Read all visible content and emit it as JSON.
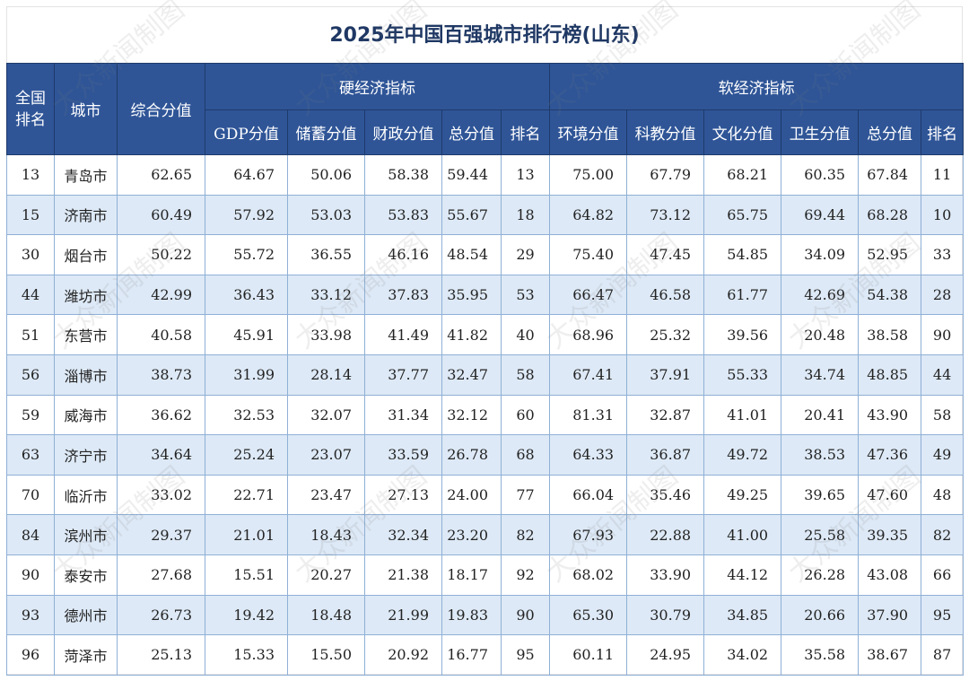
{
  "title": "2025年中国百强城市排行榜(山东)",
  "watermark": "大众新闻制图",
  "colors": {
    "header_bg": "#2f5597",
    "stripe": "#dde9f6",
    "title": "#1f3864"
  },
  "headers": {
    "national_rank": "全国排名",
    "city": "城市",
    "composite": "综合分值",
    "hard_group": "硬经济指标",
    "soft_group": "软经济指标",
    "hard": [
      "GDP分值",
      "储蓄分值",
      "财政分值",
      "总分值",
      "排名"
    ],
    "soft": [
      "环境分值",
      "科教分值",
      "文化分值",
      "卫生分值",
      "总分值",
      "排名"
    ]
  },
  "rows": [
    {
      "rank": "13",
      "city": "青岛市",
      "composite": "62.65",
      "hard": [
        "64.67",
        "50.06",
        "58.38",
        "59.44",
        "13"
      ],
      "soft": [
        "75.00",
        "67.79",
        "68.21",
        "60.35",
        "67.84",
        "11"
      ]
    },
    {
      "rank": "15",
      "city": "济南市",
      "composite": "60.49",
      "hard": [
        "57.92",
        "53.03",
        "53.83",
        "55.67",
        "18"
      ],
      "soft": [
        "64.82",
        "73.12",
        "65.75",
        "69.44",
        "68.28",
        "10"
      ]
    },
    {
      "rank": "30",
      "city": "烟台市",
      "composite": "50.22",
      "hard": [
        "55.72",
        "36.55",
        "46.16",
        "48.54",
        "29"
      ],
      "soft": [
        "75.40",
        "47.45",
        "54.85",
        "34.09",
        "52.95",
        "33"
      ]
    },
    {
      "rank": "44",
      "city": "潍坊市",
      "composite": "42.99",
      "hard": [
        "36.43",
        "33.12",
        "37.83",
        "35.95",
        "53"
      ],
      "soft": [
        "66.47",
        "46.58",
        "61.77",
        "42.69",
        "54.38",
        "28"
      ]
    },
    {
      "rank": "51",
      "city": "东营市",
      "composite": "40.58",
      "hard": [
        "45.91",
        "33.98",
        "41.49",
        "41.82",
        "40"
      ],
      "soft": [
        "68.96",
        "25.32",
        "39.56",
        "20.48",
        "38.58",
        "90"
      ]
    },
    {
      "rank": "56",
      "city": "淄博市",
      "composite": "38.73",
      "hard": [
        "31.99",
        "28.14",
        "37.77",
        "32.47",
        "58"
      ],
      "soft": [
        "67.41",
        "37.91",
        "55.33",
        "34.74",
        "48.85",
        "44"
      ]
    },
    {
      "rank": "59",
      "city": "威海市",
      "composite": "36.62",
      "hard": [
        "32.53",
        "32.07",
        "31.34",
        "32.12",
        "60"
      ],
      "soft": [
        "81.31",
        "32.87",
        "41.01",
        "20.41",
        "43.90",
        "58"
      ]
    },
    {
      "rank": "63",
      "city": "济宁市",
      "composite": "34.64",
      "hard": [
        "25.24",
        "23.07",
        "33.59",
        "26.78",
        "68"
      ],
      "soft": [
        "64.33",
        "36.87",
        "49.72",
        "38.53",
        "47.36",
        "49"
      ]
    },
    {
      "rank": "70",
      "city": "临沂市",
      "composite": "33.02",
      "hard": [
        "22.71",
        "23.47",
        "27.13",
        "24.00",
        "77"
      ],
      "soft": [
        "66.04",
        "35.46",
        "49.25",
        "39.65",
        "47.60",
        "48"
      ]
    },
    {
      "rank": "84",
      "city": "滨州市",
      "composite": "29.37",
      "hard": [
        "21.01",
        "18.43",
        "32.34",
        "23.20",
        "82"
      ],
      "soft": [
        "67.93",
        "22.88",
        "41.00",
        "25.58",
        "39.35",
        "82"
      ]
    },
    {
      "rank": "90",
      "city": "泰安市",
      "composite": "27.68",
      "hard": [
        "15.51",
        "20.27",
        "21.38",
        "18.17",
        "92"
      ],
      "soft": [
        "68.02",
        "33.90",
        "44.12",
        "26.28",
        "43.08",
        "66"
      ]
    },
    {
      "rank": "93",
      "city": "德州市",
      "composite": "26.73",
      "hard": [
        "19.42",
        "18.48",
        "21.99",
        "19.83",
        "90"
      ],
      "soft": [
        "65.30",
        "30.79",
        "34.85",
        "20.66",
        "37.90",
        "95"
      ]
    },
    {
      "rank": "96",
      "city": "菏泽市",
      "composite": "25.13",
      "hard": [
        "15.33",
        "15.50",
        "20.92",
        "16.77",
        "95"
      ],
      "soft": [
        "60.11",
        "24.95",
        "34.02",
        "35.58",
        "38.67",
        "87"
      ]
    }
  ]
}
